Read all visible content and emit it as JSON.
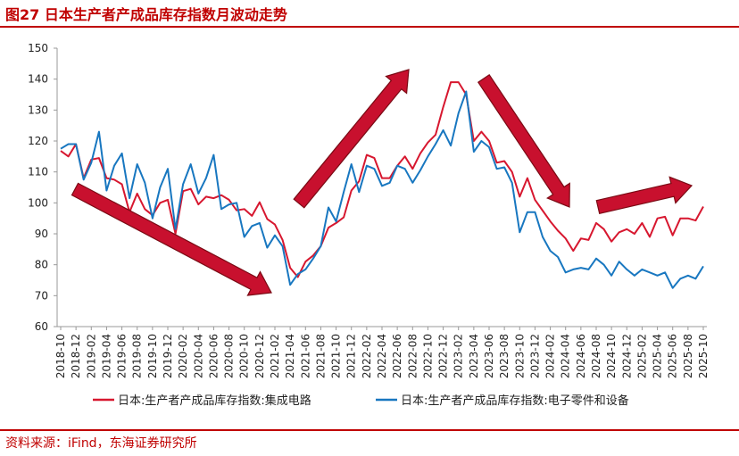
{
  "header": {
    "title": "图27  日本生产者产成品库存指数月波动走势"
  },
  "footer": {
    "source": "资料来源：iFind，东海证券研究所"
  },
  "colors": {
    "accent": "#c00000",
    "series_red": "#d7172f",
    "series_blue": "#1877c0",
    "arrow": "#c8102e"
  },
  "chart_data": {
    "type": "line",
    "title": "日本生产者产成品库存指数月波动走势",
    "xlabel": "",
    "ylabel": "",
    "ylim": [
      60,
      150
    ],
    "yticks": [
      60,
      70,
      80,
      90,
      100,
      110,
      120,
      130,
      140,
      150
    ],
    "grid": false,
    "legend": "bottom",
    "x": [
      "2018-10",
      "2018-11",
      "2018-12",
      "2019-01",
      "2019-02",
      "2019-03",
      "2019-04",
      "2019-05",
      "2019-06",
      "2019-07",
      "2019-08",
      "2019-09",
      "2019-10",
      "2019-11",
      "2019-12",
      "2020-01",
      "2020-02",
      "2020-03",
      "2020-04",
      "2020-05",
      "2020-06",
      "2020-07",
      "2020-08",
      "2020-09",
      "2020-10",
      "2020-11",
      "2020-12",
      "2021-01",
      "2021-02",
      "2021-03",
      "2021-04",
      "2021-05",
      "2021-06",
      "2021-07",
      "2021-08",
      "2021-09",
      "2021-10",
      "2021-11",
      "2021-12",
      "2022-01",
      "2022-02",
      "2022-03",
      "2022-04",
      "2022-05",
      "2022-06",
      "2022-07",
      "2022-08",
      "2022-09",
      "2022-10",
      "2022-11",
      "2022-12",
      "2023-01",
      "2023-02",
      "2023-03",
      "2023-04",
      "2023-05",
      "2023-06",
      "2023-07",
      "2023-08",
      "2023-09",
      "2023-10",
      "2023-11",
      "2023-12",
      "2024-01",
      "2024-02",
      "2024-03",
      "2024-04",
      "2024-05",
      "2024-06",
      "2024-07",
      "2024-08",
      "2024-09",
      "2024-10",
      "2024-11",
      "2024-12",
      "2025-01",
      "2025-02",
      "2025-03",
      "2025-04",
      "2025-05",
      "2025-06",
      "2025-07",
      "2025-08",
      "2025-09",
      "2025-10"
    ],
    "xtick_labels": [
      "2018-10",
      "2018-12",
      "2019-02",
      "2019-04",
      "2019-06",
      "2019-08",
      "2019-10",
      "2019-12",
      "2020-02",
      "2020-04",
      "2020-06",
      "2020-08",
      "2020-10",
      "2020-12",
      "2021-02",
      "2021-04",
      "2021-06",
      "2021-08",
      "2021-10",
      "2021-12",
      "2022-02",
      "2022-04",
      "2022-06",
      "2022-08",
      "2022-10",
      "2022-12",
      "2023-02",
      "2023-04",
      "2023-06",
      "2023-08",
      "2023-10",
      "2023-12",
      "2024-02",
      "2024-04",
      "2024-06",
      "2024-08",
      "2024-10",
      "2024-12",
      "2025-02",
      "2025-04",
      "2025-06",
      "2025-08",
      "2025-10"
    ],
    "series": [
      {
        "name": "日本:生产者产成品库存指数:集成电路",
        "color": "#d7172f",
        "values": [
          116.8,
          115,
          119,
          108,
          114,
          114.5,
          108,
          107.5,
          106,
          97,
          103,
          98,
          96,
          100,
          101,
          90,
          103.8,
          104.5,
          99.5,
          102,
          101.5,
          102.5,
          101,
          97.6,
          98,
          95.8,
          100.2,
          94.8,
          93,
          88,
          79,
          76,
          81,
          83,
          86,
          92,
          93.5,
          95.3,
          104,
          107,
          115.5,
          114.5,
          108,
          108,
          112,
          115,
          111,
          116,
          119.5,
          122,
          131,
          139,
          139,
          135,
          120,
          123,
          120,
          113,
          113.5,
          110,
          102,
          108,
          101,
          97.5,
          94,
          91,
          88.5,
          84.5,
          88.5,
          88,
          93.5,
          91.5,
          87.5,
          90.5,
          91.5,
          90,
          93.5,
          89,
          95,
          95.5,
          89.5,
          95,
          95,
          94.3,
          98.8
        ]
      },
      {
        "name": "日本:生产者产成品库存指数:电子零件和设备",
        "color": "#1877c0",
        "values": [
          117.5,
          119,
          119,
          107.5,
          113,
          123,
          104,
          112,
          116,
          101.5,
          112.5,
          106.5,
          95,
          105,
          111,
          91.5,
          106,
          112.5,
          103,
          108,
          115.5,
          98,
          99.5,
          100,
          89,
          92.5,
          93.5,
          85.5,
          89.5,
          86,
          73.5,
          77,
          78.5,
          82,
          86,
          98.5,
          94,
          103.5,
          112.5,
          103.5,
          112,
          111,
          105.5,
          106.5,
          112,
          111,
          106.5,
          110.5,
          115,
          119,
          123.5,
          118.5,
          129,
          136,
          116.5,
          120,
          118,
          111,
          111.5,
          106.5,
          90.5,
          97,
          97,
          89,
          84.5,
          82.5,
          77.5,
          78.5,
          79,
          78.5,
          82,
          80,
          76.5,
          81,
          78.5,
          76.5,
          78.5,
          77.5,
          76.5,
          77.5,
          72.5,
          75.5,
          76.5,
          75.5,
          79.5
        ]
      }
    ]
  }
}
